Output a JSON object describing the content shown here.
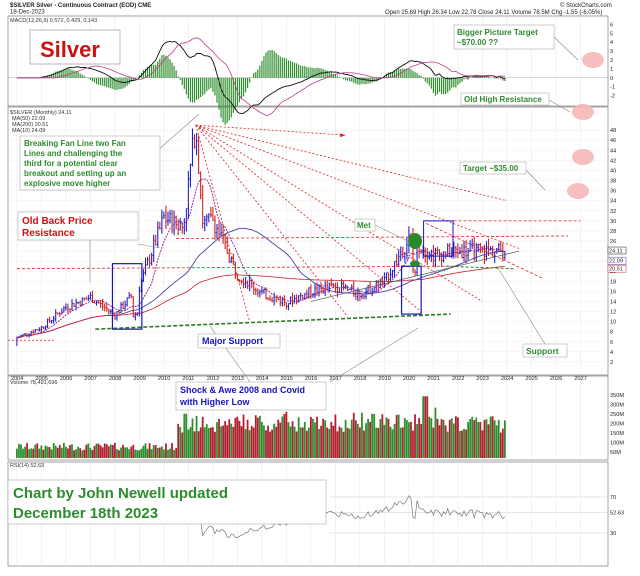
{
  "header": {
    "symbol": "$SILVER Silver - Continuous Contract (EOD) CME",
    "date": "18-Dec-2023",
    "ohlc": "Open 25.69  High 26.34  Low 22.78  Close 24.11  Volume 78.5M  Chg -1.55 (-6.05%)",
    "credit": "© StockCharts.com"
  },
  "chart_data": [
    {
      "type": "line",
      "panel": "MACD",
      "legend": "MACD(12,26,9) 0.572, 0.429, 0.143",
      "y_ticks": [
        "6",
        "5",
        "4",
        "3",
        "2",
        "1",
        "0",
        "-1",
        "-2"
      ],
      "ylim": [
        -2.5,
        6.5
      ]
    },
    {
      "type": "bar",
      "panel": "price",
      "legend": [
        "$SILVER (Monthly) 24.11",
        "MA(50) 22.09",
        "MA(200) 20.51",
        "MA(10) 24.09"
      ],
      "ylim": [
        0,
        52
      ],
      "y_ticks": [
        "48",
        "46",
        "44",
        "42",
        "40",
        "38",
        "36",
        "34",
        "32",
        "30",
        "28",
        "26",
        "24",
        "22",
        "20",
        "18",
        "16",
        "14",
        "12",
        "10",
        "8",
        "6",
        "4",
        "2"
      ],
      "x_labels": [
        "2004",
        "2005",
        "2006",
        "2007",
        "2008",
        "2009",
        "2010",
        "2011",
        "2012",
        "2013",
        "2014",
        "2015",
        "2016",
        "2017",
        "2018",
        "2019",
        "2020",
        "2021",
        "2022",
        "2023",
        "2024",
        "2025",
        "2026",
        "2027"
      ],
      "last_price_tags": [
        "24.11",
        "22.09",
        "20.51"
      ],
      "close_yearly": [
        {
          "year": 2004,
          "close": 6.8
        },
        {
          "year": 2005,
          "close": 8.8
        },
        {
          "year": 2006,
          "close": 12.9
        },
        {
          "year": 2007,
          "close": 14.8
        },
        {
          "year": 2008,
          "close": 11.3
        },
        {
          "year": 2009,
          "close": 16.9
        },
        {
          "year": 2010,
          "close": 30.6
        },
        {
          "year": 2011,
          "close": 28.2
        },
        {
          "year": 2012,
          "close": 30.3
        },
        {
          "year": 2013,
          "close": 19.5
        },
        {
          "year": 2014,
          "close": 15.6
        },
        {
          "year": 2015,
          "close": 13.8
        },
        {
          "year": 2016,
          "close": 16.0
        },
        {
          "year": 2017,
          "close": 17.0
        },
        {
          "year": 2018,
          "close": 15.5
        },
        {
          "year": 2019,
          "close": 17.9
        },
        {
          "year": 2020,
          "close": 26.4
        },
        {
          "year": 2021,
          "close": 23.3
        },
        {
          "year": 2022,
          "close": 24.0
        },
        {
          "year": 2023,
          "close": 24.11
        }
      ],
      "peak": {
        "year": 2011.3,
        "high": 49.5
      }
    },
    {
      "type": "bar",
      "panel": "volume",
      "legend": "Volume 78,491,696",
      "y_ticks": [
        "350M",
        "300M",
        "250M",
        "200M",
        "150M",
        "100M",
        "50M"
      ]
    },
    {
      "type": "line",
      "panel": "RSI",
      "legend": "RSI(14) 52.63",
      "y_ticks": [
        "70",
        "52.63",
        "30"
      ]
    }
  ],
  "annotations": {
    "silver_title": "Silver",
    "bigger_target": "Bigger Picture Target\n~$70.00 ??",
    "old_high_resistance": "Old High Resistance",
    "breaking_fan": "Breaking Fan Line two Fan\nLines and challenging the\nthird for a potential clear\nbreakout and setting up an\nexplosive move higher",
    "target_35": "Target ~$35.00",
    "old_back_price": "Old Back Price\nResistance",
    "met": "Met",
    "major_support": "Major Support",
    "support": "Support",
    "shock_awe": "Shock & Awe 2008 and Covid\nwith Higher Low",
    "credit": "Chart by John Newell updated\nDecember 18th 2023"
  },
  "colors": {
    "up_bar": "#2222cc",
    "down_bar": "#cc2222",
    "ma_fast": "#8b1a8b",
    "ma_slow": "#4444aa",
    "fan_line": "#e02020",
    "support_line": "#2a7a2a",
    "note_green": "#2e8b2e",
    "note_red": "#d01010",
    "note_blue": "#1515c0"
  }
}
